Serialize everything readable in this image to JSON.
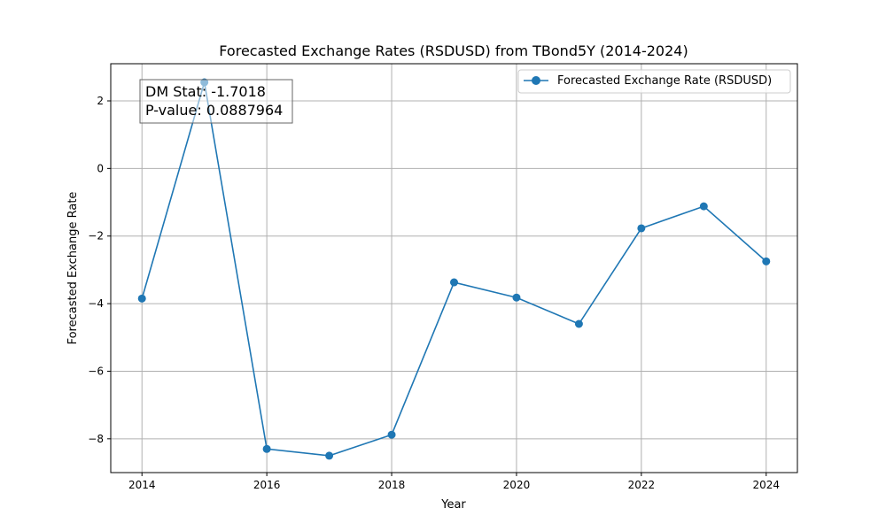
{
  "chart_data": {
    "type": "line",
    "title": "Forecasted Exchange Rates (RSDUSD) from TBond5Y (2014-2024)",
    "xlabel": "Year",
    "ylabel": "Forecasted Exchange Rate",
    "xlim": [
      2013.5,
      2024.5
    ],
    "ylim": [
      -9.0,
      3.1
    ],
    "xticks": [
      2014,
      2016,
      2018,
      2020,
      2022,
      2024
    ],
    "yticks": [
      -8,
      -6,
      -4,
      -2,
      0,
      2
    ],
    "grid": true,
    "legend_position": "top-right",
    "line_color": "#1f77b4",
    "series": [
      {
        "name": "Forecasted Exchange Rate (RSDUSD)",
        "x": [
          2014,
          2015,
          2016,
          2017,
          2018,
          2019,
          2020,
          2021,
          2022,
          2023,
          2024
        ],
        "values": [
          -3.85,
          2.55,
          -8.3,
          -8.5,
          -7.88,
          -3.37,
          -3.82,
          -4.6,
          -1.77,
          -1.12,
          -2.75
        ]
      }
    ],
    "annotation": {
      "line1": "DM Stat: -1.7018",
      "line2": "P-value: 0.0887964"
    }
  }
}
